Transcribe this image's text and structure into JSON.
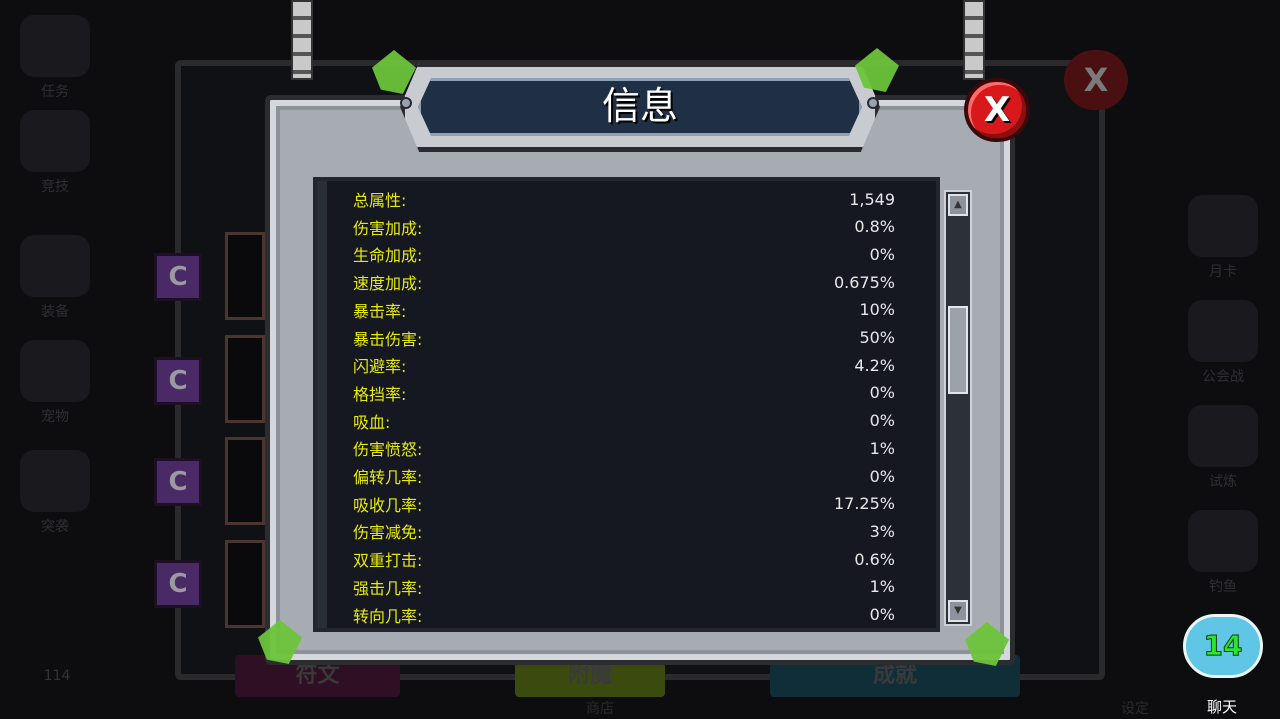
{
  "dialog": {
    "title": "信息",
    "close_label": "X",
    "stats": [
      {
        "label": "总属性:",
        "value": "1,549"
      },
      {
        "label": "伤害加成:",
        "value": "0.8%"
      },
      {
        "label": "生命加成:",
        "value": "0%"
      },
      {
        "label": "速度加成:",
        "value": "0.675%"
      },
      {
        "label": "暴击率:",
        "value": "10%"
      },
      {
        "label": "暴击伤害:",
        "value": "50%"
      },
      {
        "label": "闪避率:",
        "value": "4.2%"
      },
      {
        "label": "格挡率:",
        "value": "0%"
      },
      {
        "label": "吸血:",
        "value": "0%"
      },
      {
        "label": "伤害愤怒:",
        "value": "1%"
      },
      {
        "label": "偏转几率:",
        "value": "0%"
      },
      {
        "label": "吸收几率:",
        "value": "17.25%"
      },
      {
        "label": "伤害减免:",
        "value": "3%"
      },
      {
        "label": "双重打击:",
        "value": "0.6%"
      },
      {
        "label": "强击几率:",
        "value": "1%"
      },
      {
        "label": "转向几率:",
        "value": "0%"
      }
    ],
    "scroll_position": 0.3
  },
  "background": {
    "left_menu": [
      "任务",
      "竞技",
      "装备",
      "宠物",
      "突袭"
    ],
    "right_menu": [
      "月卡",
      "公会战",
      "试炼",
      "钓鱼"
    ],
    "level": "114",
    "close_label": "X",
    "bottom_buttons": [
      "符文",
      "附魔",
      "成就"
    ],
    "bottom_labels": [
      "商店",
      "设定"
    ],
    "chat": {
      "count": "14",
      "label": "聊天"
    }
  },
  "colors": {
    "stat_label": "#e9e80d",
    "stat_value": "#e8e8e8",
    "close": "#d8191c",
    "title_bg": "#1f2f45"
  }
}
